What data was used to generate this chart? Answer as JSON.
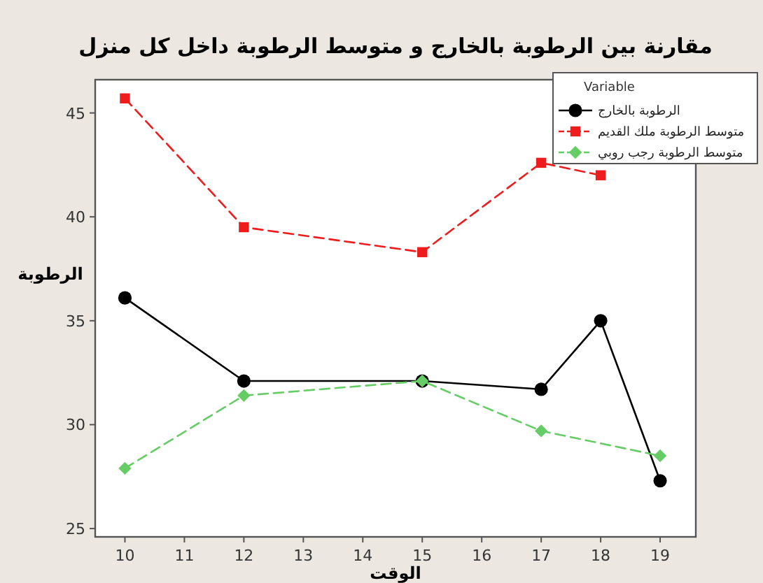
{
  "chart_data": {
    "type": "line",
    "title": "مقارنة بين الرطوبة بالخارج و متوسط الرطوبة داخل كل منزل",
    "xlabel": "الوقت",
    "ylabel": "الرطوبة",
    "legend_title": "Variable",
    "legend": "top right",
    "grid": false,
    "xlim": [
      9.5,
      19.6
    ],
    "xticks": [
      10,
      11,
      12,
      13,
      14,
      15,
      16,
      17,
      18,
      19
    ],
    "ylim": [
      24.6,
      46.6
    ],
    "yticks": [
      25,
      30,
      35,
      40,
      45
    ],
    "series": [
      {
        "name": "الرطوبة بالخارج",
        "color": "#000000",
        "marker": "circle",
        "line_style": "solid",
        "x": [
          10,
          12,
          15,
          17,
          18,
          19
        ],
        "values": [
          36.1,
          32.1,
          32.1,
          31.7,
          35.0,
          27.3
        ]
      },
      {
        "name": "متوسط الرطوبة ملك القديم",
        "color": "#ee1c1c",
        "marker": "square",
        "line_style": "dashed",
        "x": [
          10,
          12,
          15,
          17,
          18
        ],
        "values": [
          45.7,
          39.5,
          38.3,
          42.6,
          42.0
        ]
      },
      {
        "name": "متوسط الرطوبة رجب روبي",
        "color": "#66cc66",
        "marker": "diamond",
        "line_style": "dashed",
        "x": [
          10,
          12,
          15,
          17,
          19
        ],
        "values": [
          27.9,
          31.4,
          32.1,
          29.7,
          28.5
        ]
      }
    ]
  }
}
